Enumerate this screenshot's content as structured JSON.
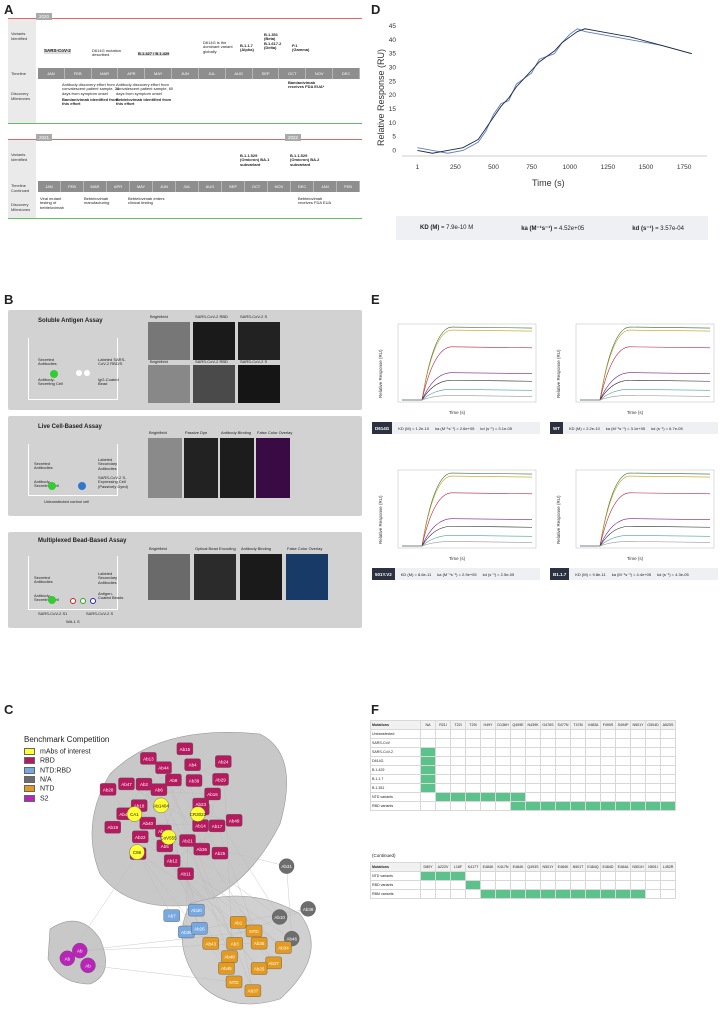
{
  "panel_letters": {
    "a": "A",
    "b": "B",
    "c": "C",
    "d": "D",
    "e": "E",
    "f": "F"
  },
  "panelA": {
    "year1": "2020",
    "year2": "2021",
    "year3": "2022",
    "row_labels": {
      "variants": "Variants Identified",
      "timeline": "Timeline",
      "milestones": "Discovery Milestones",
      "variants2": "Variants Identified",
      "timeline2": "Timeline Continued",
      "milestones2": "Discovery Milestones"
    },
    "months1": [
      "JAN",
      "FEB",
      "MAR",
      "APR",
      "MAY",
      "JUN",
      "JUL",
      "AUG",
      "SEP",
      "OCT",
      "NOV",
      "DEC"
    ],
    "months2": [
      "JAN",
      "FEB",
      "MAR",
      "APR",
      "MAY",
      "JUN",
      "JUL",
      "AUG",
      "SEP",
      "OCT",
      "NOV",
      "DEC",
      "JAN",
      "FEB"
    ],
    "variants1": [
      "SARS-CoV-2",
      "D614G mutation described",
      "B.1.427 / B.1.429",
      "D614G is the dominant variant globally",
      "B.1.1.7 (Alpha)",
      "B.1.351 (Beta) B.1.617.2 (Delta)",
      "P.1 (Gamma)"
    ],
    "milestones1": [
      "Antibody discovery effort from convalescent patient sample, 28 days from symptom onset",
      "Bamlanivimab identified from this effort",
      "Antibody discovery effort from convalescent patient sample, 60 days from symptom onset",
      "Bebtelovimab identified from this effort",
      "Bamlanivimab receives FDA EUA*"
    ],
    "variants2": [
      "B.1.1.529 (Omicron) BA.1 subvariant",
      "B.1.1.529 (Omicron) BA.2 subvariant"
    ],
    "milestones2": [
      "Viral mutant testing of bebtelovimab",
      "Bebtelovimab manufacturing",
      "Bebtelovimab enters clinical testing",
      "Bebtelovimab receives FDA EUA"
    ]
  },
  "panelB": {
    "assays": [
      {
        "title": "Soluble Antigen Assay",
        "labels": [
          "Secreted Antibodies",
          "Antibody-Secreting Cell",
          "Labeled SARS-CoV-2 RBD/S",
          "IgG-Coated Bead"
        ],
        "micro": [
          "Brightfield",
          "SARS-CoV-2 RBD",
          "SARS-CoV-2 S",
          "Brightfield",
          "SARS-CoV-2 RBD",
          "SARS-CoV-2 S"
        ]
      },
      {
        "title": "Live Cell-Based Assay",
        "labels": [
          "Secreted Antibodies",
          "Antibody-Secreting Cell",
          "Labeled Secondary Antibodies",
          "SARS-CoV-2 S-Expressing Cell (Passively Dyed)",
          "Untransfected control cell"
        ],
        "micro": [
          "Brightfield",
          "Passive Dye",
          "Antibody Binding",
          "False Color Overlay"
        ]
      },
      {
        "title": "Multiplexed Bead-Based Assay",
        "labels": [
          "Secreted Antibodies",
          "Antibody-Secreting Cell",
          "Labeled Secondary Antibodies",
          "Antigen-Coated Beads",
          "SARS-CoV-2 S1",
          "SARS-CoV-2 S",
          "WA-1 S"
        ],
        "micro": [
          "Brightfield",
          "Optical Bead Encoding",
          "Antibody Binding",
          "False Color Overlay"
        ]
      }
    ]
  },
  "panelC": {
    "title": "Benchmark Competition",
    "legend": [
      {
        "label": "mAbs of interest",
        "color": "#ffff33"
      },
      {
        "label": "RBD",
        "color": "#b5195e"
      },
      {
        "label": "NTD:RBD",
        "color": "#78a8e0"
      },
      {
        "label": "N/A",
        "color": "#6d6d6d"
      },
      {
        "label": "NTD",
        "color": "#e39a20"
      },
      {
        "label": "S2",
        "color": "#b825b8"
      }
    ],
    "nodes_rbd": [
      "Ab9",
      "Ab49",
      "Ab17",
      "Ab14",
      "Ab25",
      "Ab36",
      "Ab21",
      "Ab11",
      "Ab12",
      "Ab5",
      "Ab41",
      "Ab42",
      "Ab22",
      "Ab40",
      "Ab19",
      "Ab43",
      "Ab18",
      "Ab28",
      "Ab47",
      "Ab2",
      "Ab6",
      "Ab13",
      "Ab44",
      "Ab8",
      "Ab15",
      "Ab4",
      "Ab39",
      "Ab24",
      "Ab29",
      "Ab16",
      "Ab23"
    ],
    "nodes_interest": [
      "CoV555",
      "C86",
      "CA1",
      "Ab1404",
      "CR3022"
    ],
    "nodes_ntdrbd": [
      "Ab36",
      "Ab7",
      "Ab30",
      "Ab26"
    ],
    "nodes_na": [
      "Ab10",
      "Ab31",
      "Ab38",
      "Ab46"
    ],
    "nodes_ntd": [
      "Ab3",
      "Ab1",
      "NTD",
      "Ab35",
      "Ab34",
      "Ab27",
      "Ab25",
      "Ab37",
      "NTD",
      "Ab45",
      "Ab48",
      "Ab43"
    ],
    "nodes_s2": [
      "Ab",
      "Ab",
      "Ab"
    ]
  },
  "panelD": {
    "ylabel": "Relative Response (RU)",
    "xlabel": "Time (s)",
    "kd_label": "KD (M)",
    "kd_value": "= 7.9e-10 M",
    "ka_label": "ka (M⁻¹s⁻¹)",
    "ka_value": "= 4.52e+05",
    "kdis_label": "kd (s⁻¹)",
    "kdis_value": "= 3.57e-04"
  },
  "panelE": {
    "ylabel": "Relative Response (RU)",
    "xlabel": "Time (s)",
    "plots": [
      {
        "variant": "D614G",
        "kd": "KD (M) = 1.2e-10",
        "ka": "ka (M⁻¹s⁻¹) = 2.6e+05",
        "kdis": "kd (s⁻¹) = 3.1e-05"
      },
      {
        "variant": "WT",
        "kd": "KD (M) = 2.2e-10",
        "ka": "ka (M⁻¹s⁻¹) = 3.1e+05",
        "kdis": "kd (s⁻¹) = 6.7e-05"
      },
      {
        "variant": "501Y.V2",
        "kd": "KD (M) = 8.6e-11",
        "ka": "ka (M⁻¹s⁻¹) = 2.9e+05",
        "kdis": "kd (s⁻¹) = 2.5e-05"
      },
      {
        "variant": "B1.1.7",
        "kd": "KD (M) = 9.8e-11",
        "ka": "ka (M⁻¹s⁻¹) = 4.4e+05",
        "kdis": "kd (s⁻¹) = 4.3e-05"
      }
    ]
  },
  "panelF": {
    "corner": "Mutations",
    "cols1": [
      "NA",
      "R21I",
      "T22I",
      "T29I",
      "H49Y",
      "D136H",
      "Q409E",
      "N439K",
      "G476S",
      "S477N",
      "T478I",
      "V483A",
      "F490S",
      "S494P",
      "N501Y",
      "G504D",
      "A520S"
    ],
    "rows1": [
      "Untransfected",
      "SARS-CoV",
      "SARS-CoV-2",
      "D614G",
      "B.1.429",
      "B.1.1.7",
      "B.1.351",
      "NTD variants",
      "RBD variants"
    ],
    "continued": "(Continued)",
    "cols2": [
      "D80Y",
      "A222V",
      "L18F",
      "K417T",
      "E484K",
      "K417N",
      "E484K",
      "Q493S",
      "N501Y",
      "E484K",
      "N501T",
      "E484Q",
      "E484D",
      "E484A",
      "N501H",
      "N501I",
      "L452R"
    ],
    "rows2": [
      "NTD variants",
      "RBD variants",
      "RBM variants"
    ]
  },
  "chart_data": [
    {
      "type": "line",
      "title": "",
      "xlabel": "Time (s)",
      "ylabel": "Relative Response (RU)",
      "xlim": [
        -100,
        1900
      ],
      "ylim": [
        -2,
        45
      ],
      "x_ticks": [
        "1",
        "250",
        "500",
        "750",
        "1000",
        "1250",
        "1500",
        "1750"
      ],
      "y_ticks": [
        "0",
        "5",
        "10",
        "15",
        "20",
        "25",
        "30",
        "35",
        "40",
        "45"
      ],
      "series": [
        {
          "x": [
            1,
            100,
            200,
            300,
            400,
            450,
            500,
            550,
            600,
            650,
            700,
            750,
            800,
            850,
            900,
            950,
            1000,
            1050,
            1100,
            1200,
            1400,
            1600,
            1800
          ],
          "y": [
            1,
            0,
            -1,
            0,
            3,
            7,
            13,
            17,
            18,
            24,
            26,
            28,
            33,
            34,
            35,
            39,
            42,
            44,
            43,
            42,
            40,
            38,
            35
          ]
        },
        {
          "x": [
            1,
            100,
            200,
            300,
            400,
            450,
            500,
            550,
            600,
            650,
            700,
            750,
            800,
            850,
            900,
            950,
            1000,
            1050,
            1100,
            1200,
            1400,
            1600,
            1800
          ],
          "y": [
            0,
            -1,
            0,
            1,
            4,
            8,
            12,
            16,
            19,
            23,
            26,
            29,
            32,
            34,
            36,
            39,
            41,
            43,
            44,
            43,
            41,
            38,
            35
          ]
        }
      ]
    }
  ]
}
